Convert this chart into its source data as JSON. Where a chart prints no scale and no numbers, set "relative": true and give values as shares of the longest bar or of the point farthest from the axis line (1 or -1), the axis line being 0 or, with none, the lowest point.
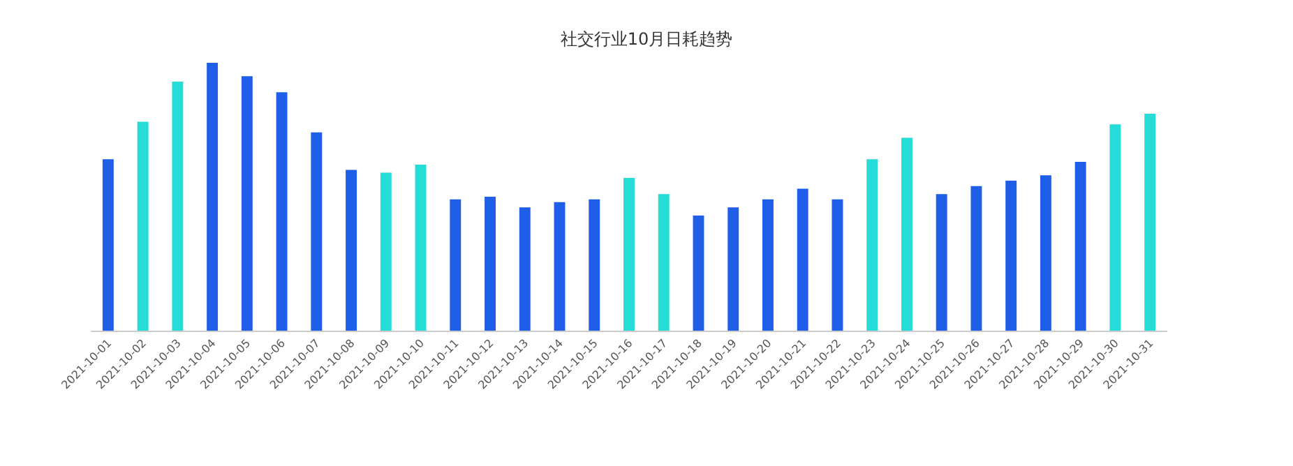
{
  "chart_data": {
    "type": "bar",
    "title": "社交行业10月日耗趋势",
    "relative": true,
    "categories": [
      "2021-10-01",
      "2021-10-02",
      "2021-10-03",
      "2021-10-04",
      "2021-10-05",
      "2021-10-06",
      "2021-10-07",
      "2021-10-08",
      "2021-10-09",
      "2021-10-10",
      "2021-10-11",
      "2021-10-12",
      "2021-10-13",
      "2021-10-14",
      "2021-10-15",
      "2021-10-16",
      "2021-10-17",
      "2021-10-18",
      "2021-10-19",
      "2021-10-20",
      "2021-10-21",
      "2021-10-22",
      "2021-10-23",
      "2021-10-24",
      "2021-10-25",
      "2021-10-26",
      "2021-10-27",
      "2021-10-28",
      "2021-10-29",
      "2021-10-30",
      "2021-10-31"
    ],
    "values": [
      0.64,
      0.78,
      0.93,
      1,
      0.95,
      0.89,
      0.74,
      0.6,
      0.59,
      0.62,
      0.49,
      0.5,
      0.46,
      0.48,
      0.49,
      0.57,
      0.51,
      0.43,
      0.46,
      0.49,
      0.53,
      0.49,
      0.64,
      0.72,
      0.51,
      0.54,
      0.56,
      0.58,
      0.63,
      0.77,
      0.81
    ],
    "colors": [
      "#1f5fe8",
      "#26dcd6",
      "#26dcd6",
      "#1f5fe8",
      "#1f5fe8",
      "#1f5fe8",
      "#1f5fe8",
      "#1f5fe8",
      "#26dcd6",
      "#26dcd6",
      "#1f5fe8",
      "#1f5fe8",
      "#1f5fe8",
      "#1f5fe8",
      "#1f5fe8",
      "#26dcd6",
      "#26dcd6",
      "#1f5fe8",
      "#1f5fe8",
      "#1f5fe8",
      "#1f5fe8",
      "#1f5fe8",
      "#26dcd6",
      "#26dcd6",
      "#1f5fe8",
      "#1f5fe8",
      "#1f5fe8",
      "#1f5fe8",
      "#1f5fe8",
      "#26dcd6",
      "#26dcd6"
    ],
    "data_labels": false
  }
}
